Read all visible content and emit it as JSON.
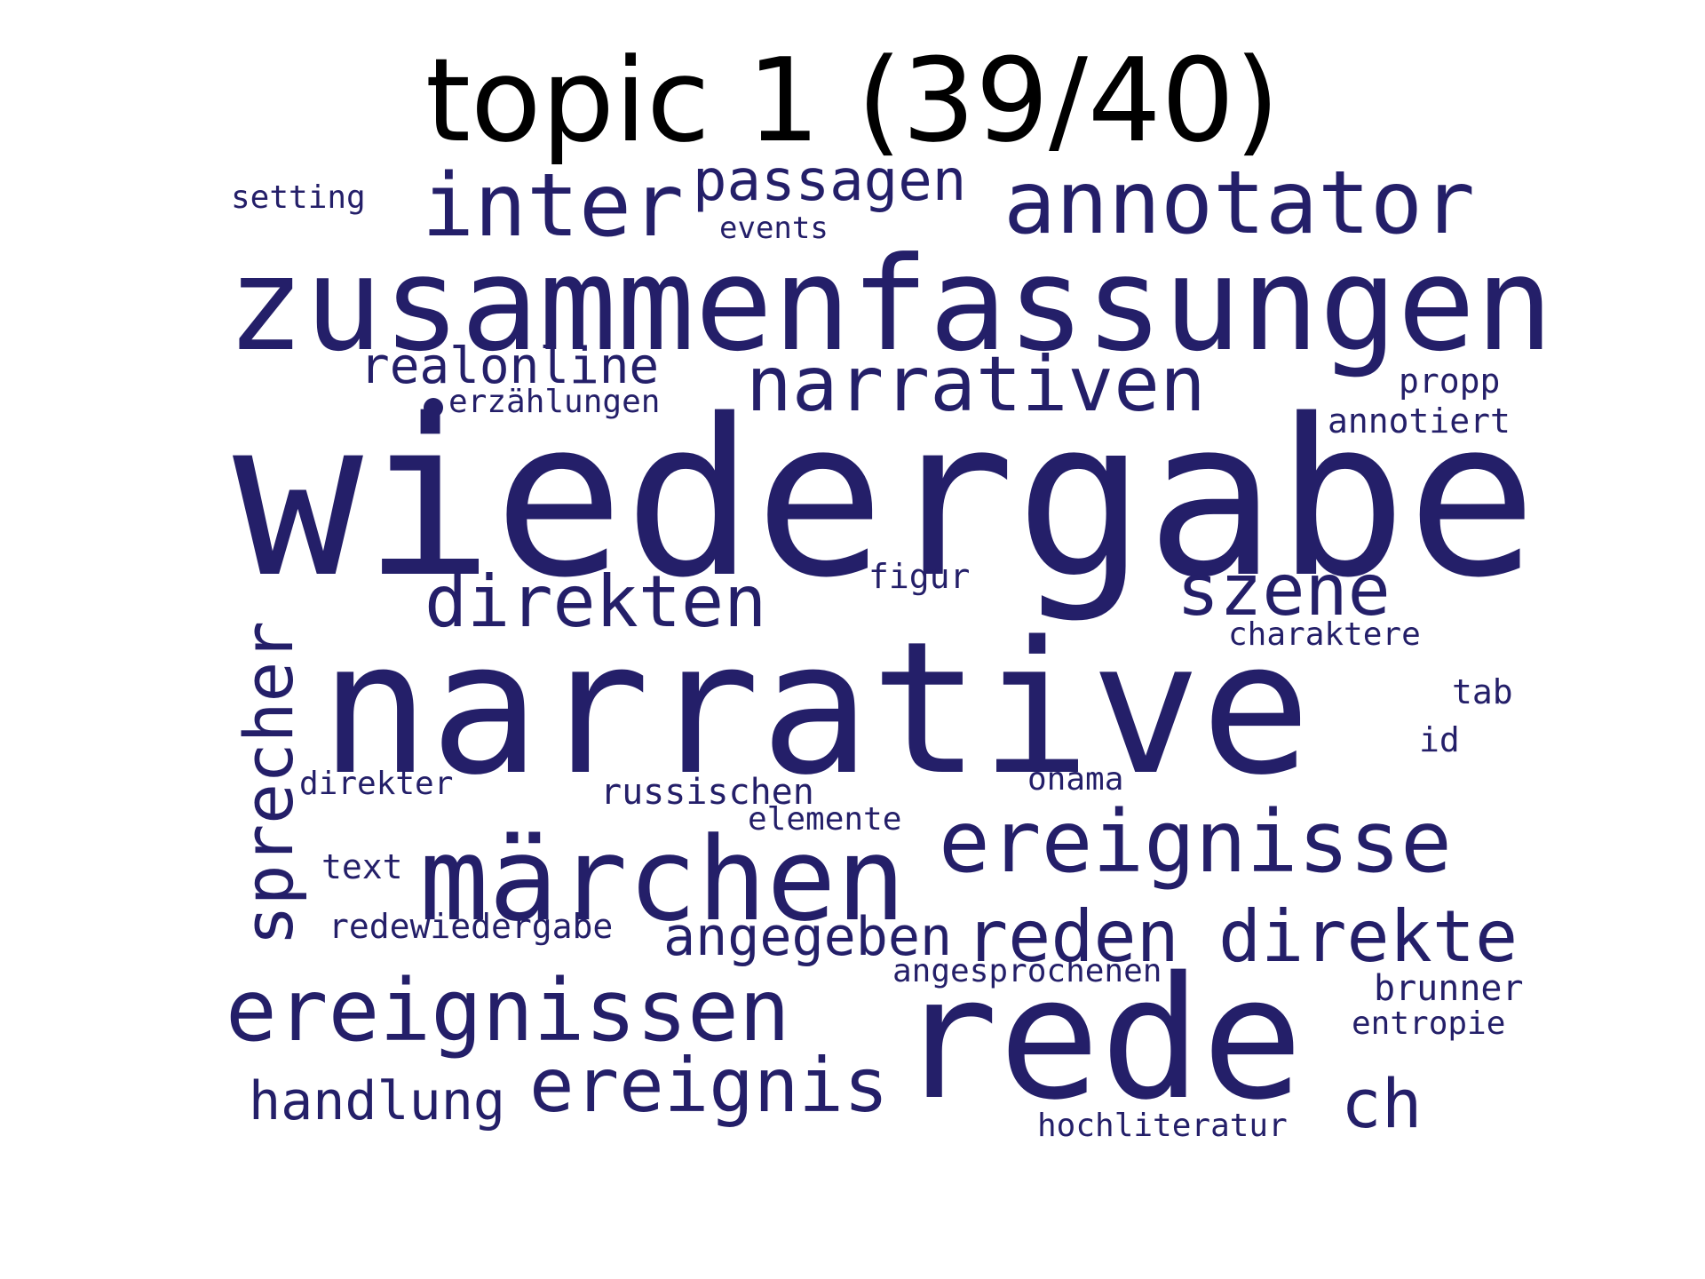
{
  "title": "topic 1 (39/40)",
  "word_color": "#241f69",
  "title_color": "#000000",
  "words": [
    {
      "text": "setting"
    },
    {
      "text": "inter"
    },
    {
      "text": "passagen"
    },
    {
      "text": "annotator"
    },
    {
      "text": "events"
    },
    {
      "text": "zusammenfassungen"
    },
    {
      "text": "realonline"
    },
    {
      "text": "narrativen"
    },
    {
      "text": "propp"
    },
    {
      "text": "erzählungen"
    },
    {
      "text": "annotiert"
    },
    {
      "text": "wiedergabe"
    },
    {
      "text": "figur"
    },
    {
      "text": "direkten"
    },
    {
      "text": "szene"
    },
    {
      "text": "charaktere"
    },
    {
      "text": "sprecher"
    },
    {
      "text": "narrative"
    },
    {
      "text": "tab"
    },
    {
      "text": "id"
    },
    {
      "text": "direkter"
    },
    {
      "text": "onama"
    },
    {
      "text": "russischen"
    },
    {
      "text": "elemente"
    },
    {
      "text": "ereignisse"
    },
    {
      "text": "text"
    },
    {
      "text": "märchen"
    },
    {
      "text": "redewiedergabe"
    },
    {
      "text": "angegeben"
    },
    {
      "text": "reden"
    },
    {
      "text": "direkte"
    },
    {
      "text": "angesprochenen"
    },
    {
      "text": "brunner"
    },
    {
      "text": "ereignissen"
    },
    {
      "text": "rede"
    },
    {
      "text": "entropie"
    },
    {
      "text": "handlung"
    },
    {
      "text": "ereignis"
    },
    {
      "text": "ch"
    },
    {
      "text": "hochliteratur"
    }
  ]
}
